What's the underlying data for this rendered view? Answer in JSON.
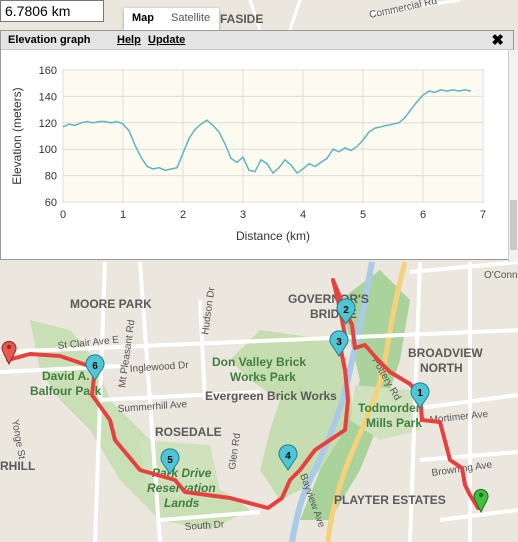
{
  "distance_readout": "6.7806 km",
  "map_type": {
    "map_label": "Map",
    "satellite_label": "Satellite",
    "selected": "Map"
  },
  "elevation_panel": {
    "title": "Elevation graph",
    "help_label": "Help",
    "update_label": "Update",
    "close_label": "✖"
  },
  "chart_data": {
    "type": "line",
    "xlabel": "Distance (km)",
    "ylabel": "Elevation (meters)",
    "xlim": [
      0,
      7
    ],
    "ylim": [
      60,
      160
    ],
    "xticks": [
      "0",
      "1",
      "2",
      "3",
      "4",
      "5",
      "6",
      "7"
    ],
    "yticks": [
      "60",
      "80",
      "100",
      "120",
      "140",
      "160"
    ],
    "grid": true,
    "series_color": "#5fb3c3",
    "x": [
      0,
      0.1,
      0.2,
      0.3,
      0.4,
      0.5,
      0.6,
      0.7,
      0.8,
      0.9,
      1.0,
      1.1,
      1.2,
      1.3,
      1.4,
      1.5,
      1.6,
      1.7,
      1.8,
      1.9,
      2.0,
      2.1,
      2.2,
      2.3,
      2.4,
      2.5,
      2.6,
      2.7,
      2.8,
      2.9,
      3.0,
      3.1,
      3.2,
      3.3,
      3.4,
      3.5,
      3.6,
      3.7,
      3.8,
      3.9,
      4.0,
      4.1,
      4.2,
      4.3,
      4.4,
      4.5,
      4.6,
      4.7,
      4.8,
      4.9,
      5.0,
      5.1,
      5.2,
      5.3,
      5.4,
      5.5,
      5.6,
      5.7,
      5.8,
      5.9,
      6.0,
      6.1,
      6.2,
      6.3,
      6.4,
      6.5,
      6.6,
      6.7,
      6.8
    ],
    "y": [
      117,
      119,
      118,
      120,
      121,
      120,
      121,
      121,
      120,
      121,
      119,
      114,
      103,
      94,
      87,
      85,
      86,
      84,
      85,
      86,
      97,
      108,
      115,
      119,
      122,
      118,
      113,
      104,
      93,
      90,
      94,
      84,
      83,
      92,
      89,
      82,
      86,
      92,
      88,
      82,
      85,
      89,
      87,
      90,
      93,
      100,
      98,
      101,
      99,
      102,
      107,
      113,
      116,
      117,
      118,
      119,
      120,
      124,
      130,
      136,
      141,
      144,
      143,
      145,
      144,
      145,
      144,
      145,
      144
    ]
  },
  "map": {
    "route_color": "#e8403f",
    "labels": {
      "fairside": "FASIDE",
      "commercial": "Commercial Rd",
      "oconnor": "O'Connor",
      "moore_park": "MOORE PARK",
      "governors_bridge_1": "GOVERNOR'S",
      "governors_bridge_2": "BRIDGE",
      "broadview_1": "BROADVIEW",
      "broadview_2": "NORTH",
      "don_valley_1": "Don Valley Brick",
      "don_valley_2": "Works Park",
      "evergreen": "Evergreen Brick Works",
      "todmorden_1": "Todmorden",
      "todmorden_2": "Mills Park",
      "david_1": "David A.",
      "david_2": "Balfour Park",
      "rosedale": "ROSEDALE",
      "park_drive_1": "Park Drive",
      "park_drive_2": "Reservation",
      "park_drive_3": "Lands",
      "playter": "PLAYTER ESTATES",
      "hill": "RHILL",
      "st_clair": "St Clair Ave E",
      "inglewood": "Inglewood Dr",
      "summerhill": "Summerhill Ave",
      "mortimer": "Mortimer Ave",
      "browning": "Browning Ave",
      "south_dr": "South Dr",
      "glen_rd": "Glen Rd",
      "hudson": "Hudson Dr",
      "mt_pleasant": "Mt Pleasant Rd",
      "yonge": "Yonge St",
      "bayview": "Bayview Ave",
      "pottery": "Pottery Rd"
    },
    "markers": [
      {
        "label": "1"
      },
      {
        "label": "2"
      },
      {
        "label": "3"
      },
      {
        "label": "4"
      },
      {
        "label": "5"
      },
      {
        "label": "6"
      }
    ]
  }
}
